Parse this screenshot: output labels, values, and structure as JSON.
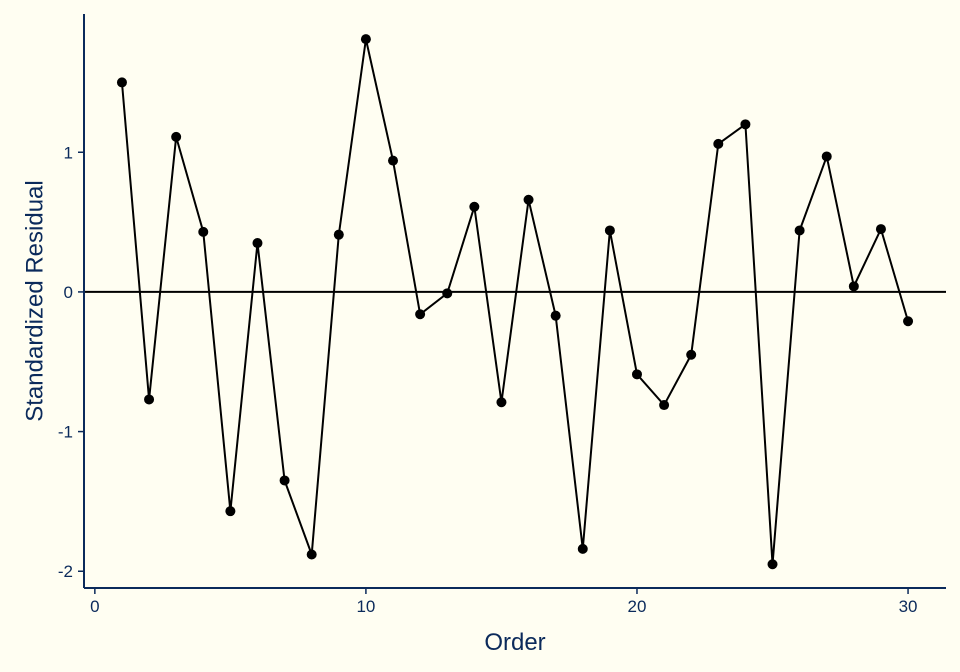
{
  "chart_data": {
    "type": "line",
    "xlabel": "Order",
    "ylabel": "Standardized Residual",
    "xlim": [
      -0.4,
      31.4
    ],
    "ylim": [
      -2.12,
      1.99
    ],
    "xticks": [
      0,
      10,
      20,
      30
    ],
    "yticks": [
      1,
      0,
      -1,
      -2
    ],
    "reference_line_y": 0,
    "grid": false,
    "colors": {
      "background": "#FFFEF2",
      "axis": "#0B2A5B",
      "series": "#000000"
    },
    "series": [
      {
        "x": [
          1,
          2,
          3,
          4,
          5,
          6,
          7,
          8,
          9,
          10,
          11,
          12,
          13,
          14,
          15,
          16,
          17,
          18,
          19,
          20,
          21,
          22,
          23,
          24,
          25,
          26,
          27,
          28,
          29,
          30
        ],
        "values": [
          1.5,
          -0.77,
          1.11,
          0.43,
          -1.57,
          0.35,
          -1.35,
          -1.88,
          0.41,
          1.81,
          0.94,
          -0.16,
          -0.01,
          0.61,
          -0.79,
          0.66,
          -0.17,
          -1.84,
          0.44,
          -0.59,
          -0.81,
          -0.45,
          1.06,
          1.2,
          -1.95,
          0.44,
          0.97,
          0.04,
          0.45,
          -0.21
        ]
      }
    ]
  }
}
